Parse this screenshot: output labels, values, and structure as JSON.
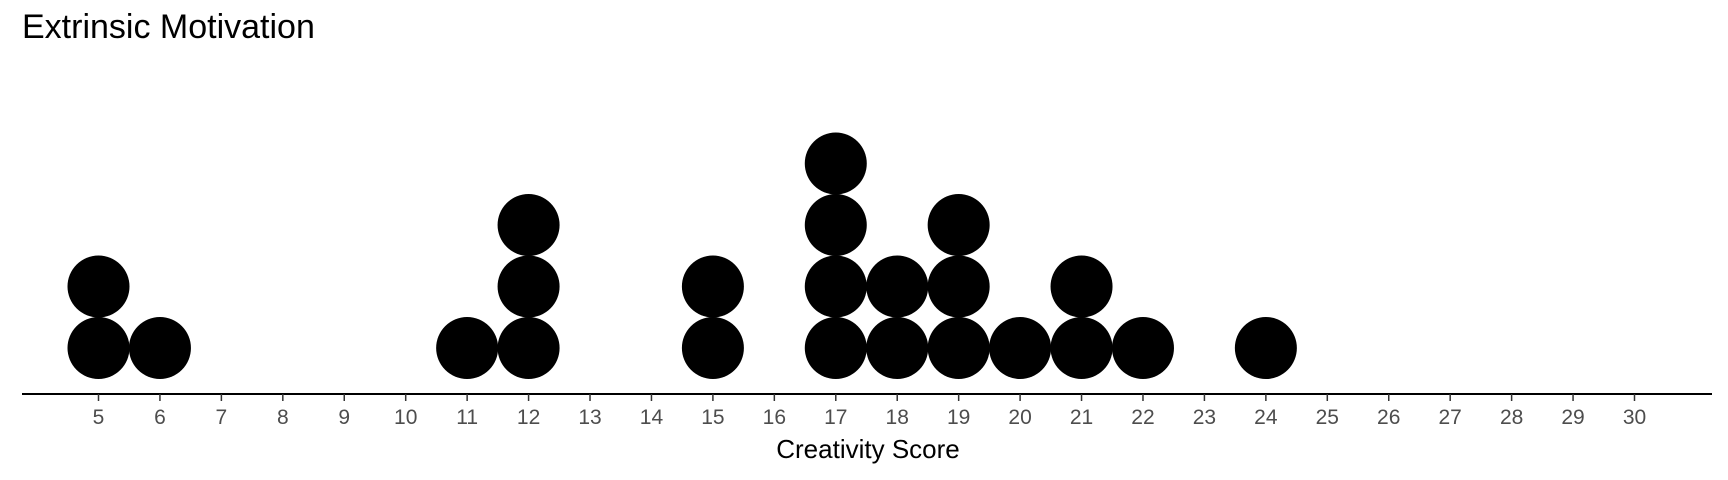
{
  "chart_data": {
    "type": "dotplot",
    "title": "Extrinsic Motivation",
    "xlabel": "Creativity Score",
    "ylabel": "",
    "xlim": [
      4,
      31.5
    ],
    "xticks": [
      5,
      6,
      7,
      8,
      9,
      10,
      11,
      12,
      13,
      14,
      15,
      16,
      17,
      18,
      19,
      20,
      21,
      22,
      23,
      24,
      25,
      26,
      27,
      28,
      29,
      30
    ],
    "points": [
      {
        "x": 5,
        "count": 2
      },
      {
        "x": 6,
        "count": 1
      },
      {
        "x": 11,
        "count": 1
      },
      {
        "x": 12,
        "count": 3
      },
      {
        "x": 15,
        "count": 2
      },
      {
        "x": 17,
        "count": 4
      },
      {
        "x": 18,
        "count": 2
      },
      {
        "x": 19,
        "count": 3
      },
      {
        "x": 20,
        "count": 1
      },
      {
        "x": 21,
        "count": 2
      },
      {
        "x": 22,
        "count": 1
      },
      {
        "x": 24,
        "count": 1
      }
    ],
    "dot_color": "#000000",
    "grid": false
  }
}
